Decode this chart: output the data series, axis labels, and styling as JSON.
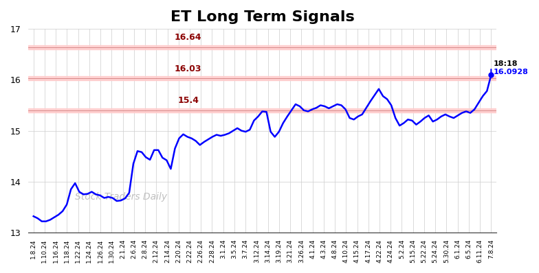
{
  "title": "ET Long Term Signals",
  "title_fontsize": 16,
  "title_fontweight": "bold",
  "line_color": "blue",
  "line_width": 1.8,
  "background_color": "#ffffff",
  "grid_color": "#cccccc",
  "watermark": "Stock Traders Daily",
  "watermark_color": "#c0c0c0",
  "hlines": [
    {
      "y": 16.64,
      "label": "16.64",
      "color": "#8b0000",
      "band_color": "#ffcccc"
    },
    {
      "y": 16.03,
      "label": "16.03",
      "color": "#8b0000",
      "band_color": "#ffcccc"
    },
    {
      "y": 15.4,
      "label": "15.4",
      "color": "#8b0000",
      "band_color": "#ffcccc"
    }
  ],
  "band_half": 0.04,
  "annotation_text": "18:18",
  "annotation_value": "16.0928",
  "annotation_color": "blue",
  "annotation_label_color": "black",
  "ylim": [
    13,
    17
  ],
  "yticks": [
    13,
    14,
    15,
    16,
    17
  ],
  "x_labels": [
    "1.8.24",
    "1.10.24",
    "1.16.24",
    "1.18.24",
    "1.22.24",
    "1.24.24",
    "1.26.24",
    "1.30.24",
    "2.1.24",
    "2.6.24",
    "2.8.24",
    "2.12.24",
    "2.14.24",
    "2.20.24",
    "2.22.24",
    "2.26.24",
    "2.28.24",
    "3.1.24",
    "3.5.24",
    "3.7.24",
    "3.12.24",
    "3.14.24",
    "3.19.24",
    "3.21.24",
    "3.26.24",
    "4.1.24",
    "4.3.24",
    "4.8.24",
    "4.10.24",
    "4.15.24",
    "4.17.24",
    "4.22.24",
    "4.24.24",
    "5.2.24",
    "5.15.24",
    "5.22.24",
    "5.24.24",
    "5.30.24",
    "6.1.24",
    "6.5.24",
    "6.11.24",
    "7.8.24"
  ],
  "y_values": [
    13.32,
    13.28,
    13.22,
    13.22,
    13.25,
    13.3,
    13.35,
    13.42,
    13.55,
    13.85,
    13.97,
    13.8,
    13.75,
    13.76,
    13.8,
    13.75,
    13.73,
    13.68,
    13.7,
    13.68,
    13.62,
    13.63,
    13.67,
    13.78,
    14.35,
    14.6,
    14.58,
    14.48,
    14.43,
    14.62,
    14.62,
    14.47,
    14.42,
    14.25,
    14.65,
    14.85,
    14.93,
    14.88,
    14.85,
    14.8,
    14.72,
    14.78,
    14.83,
    14.88,
    14.92,
    14.9,
    14.92,
    14.95,
    15.0,
    15.05,
    15.0,
    14.98,
    15.02,
    15.2,
    15.28,
    15.38,
    15.37,
    14.98,
    14.88,
    14.98,
    15.15,
    15.28,
    15.4,
    15.52,
    15.48,
    15.4,
    15.38,
    15.42,
    15.45,
    15.5,
    15.48,
    15.44,
    15.48,
    15.52,
    15.5,
    15.42,
    15.25,
    15.22,
    15.28,
    15.32,
    15.45,
    15.58,
    15.7,
    15.82,
    15.68,
    15.62,
    15.5,
    15.25,
    15.1,
    15.15,
    15.22,
    15.2,
    15.12,
    15.18,
    15.25,
    15.3,
    15.18,
    15.22,
    15.28,
    15.32,
    15.28,
    15.25,
    15.3,
    15.35,
    15.38,
    15.35,
    15.42,
    15.55,
    15.68,
    15.78,
    16.0928
  ]
}
